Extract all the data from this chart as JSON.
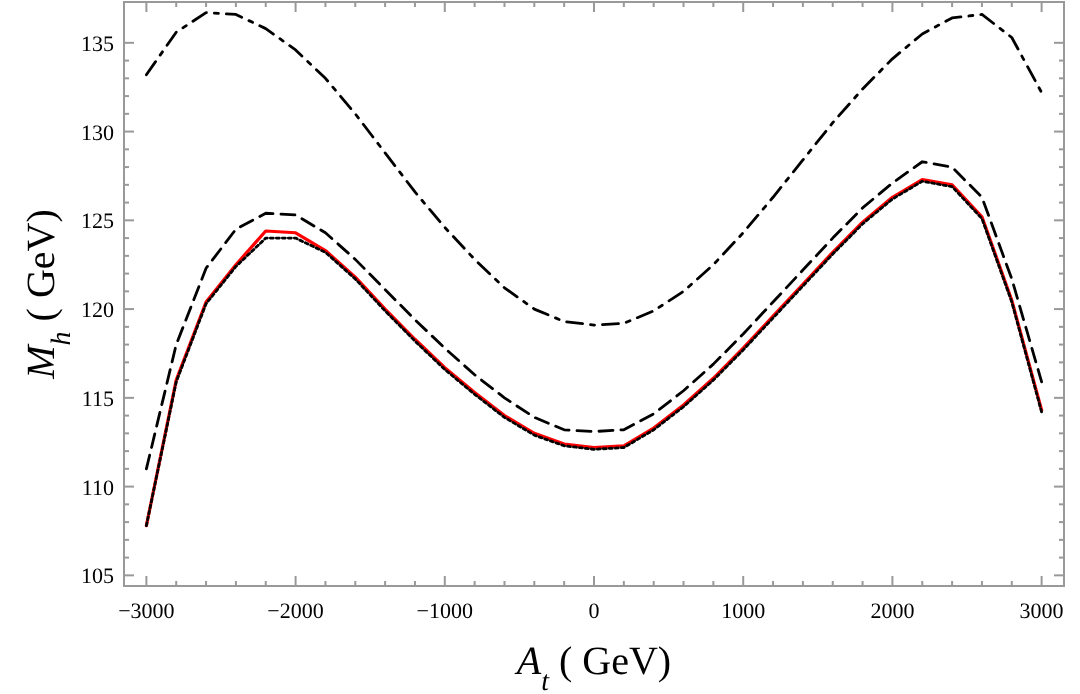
{
  "chart_data": {
    "type": "line",
    "xlabel": "A$_{t}$ ( GeV)",
    "ylabel": "M$_{h}$ ( GeV)",
    "x": [
      -3000,
      -2800,
      -2600,
      -2400,
      -2200,
      -2000,
      -1800,
      -1600,
      -1400,
      -1200,
      -1000,
      -800,
      -600,
      -400,
      -200,
      0,
      200,
      400,
      600,
      800,
      1000,
      1200,
      1400,
      1600,
      1800,
      2000,
      2200,
      2400,
      2600,
      2800,
      3000
    ],
    "xlim": [
      -3150,
      3150
    ],
    "xticks": [
      -3000,
      -2000,
      -1000,
      0,
      1000,
      2000,
      3000
    ],
    "ylim": [
      104.4,
      137.3
    ],
    "yticks": [
      105,
      110,
      115,
      120,
      125,
      130,
      135
    ],
    "grid": false,
    "marker": "none",
    "series": [
      {
        "color": "#000000",
        "line_style": "dashdot",
        "values": [
          133.2,
          135.6,
          136.7,
          136.6,
          135.8,
          134.6,
          133,
          131,
          128.8,
          126.6,
          124.6,
          122.8,
          121.2,
          120,
          119.3,
          119.1,
          119.2,
          119.9,
          121,
          122.5,
          124.3,
          126.3,
          128.4,
          130.5,
          132.4,
          134.1,
          135.5,
          136.4,
          136.6,
          135.3,
          132.2
        ]
      },
      {
        "color": "#000000",
        "line_style": "dashed",
        "values": [
          111,
          118,
          122.3,
          124.5,
          125.4,
          125.3,
          124.3,
          122.8,
          121.1,
          119.4,
          117.8,
          116.3,
          115,
          113.9,
          113.2,
          113.1,
          113.2,
          114.1,
          115.4,
          116.9,
          118.6,
          120.4,
          122.2,
          124,
          125.7,
          127.1,
          128.3,
          128,
          126.3,
          121.7,
          115.9
        ]
      },
      {
        "color": "#ff0000",
        "line_style": "solid",
        "values": [
          107.8,
          116,
          120.4,
          122.5,
          124.4,
          124.3,
          123.3,
          121.8,
          120,
          118.3,
          116.7,
          115.3,
          114,
          113,
          112.4,
          112.2,
          112.3,
          113.3,
          114.6,
          116.1,
          117.8,
          119.6,
          121.4,
          123.2,
          124.9,
          126.3,
          127.3,
          127,
          125.2,
          120.5,
          114.3
        ]
      },
      {
        "color": "#000000",
        "line_style": "dotted",
        "values": [
          107.8,
          115.9,
          120.3,
          122.4,
          124,
          124,
          123.2,
          121.7,
          119.9,
          118.2,
          116.6,
          115.2,
          113.9,
          112.9,
          112.3,
          112.1,
          112.2,
          113.2,
          114.5,
          116,
          117.7,
          119.5,
          121.3,
          123.1,
          124.8,
          126.2,
          127.2,
          126.9,
          125.1,
          120.4,
          114.2
        ]
      }
    ]
  }
}
